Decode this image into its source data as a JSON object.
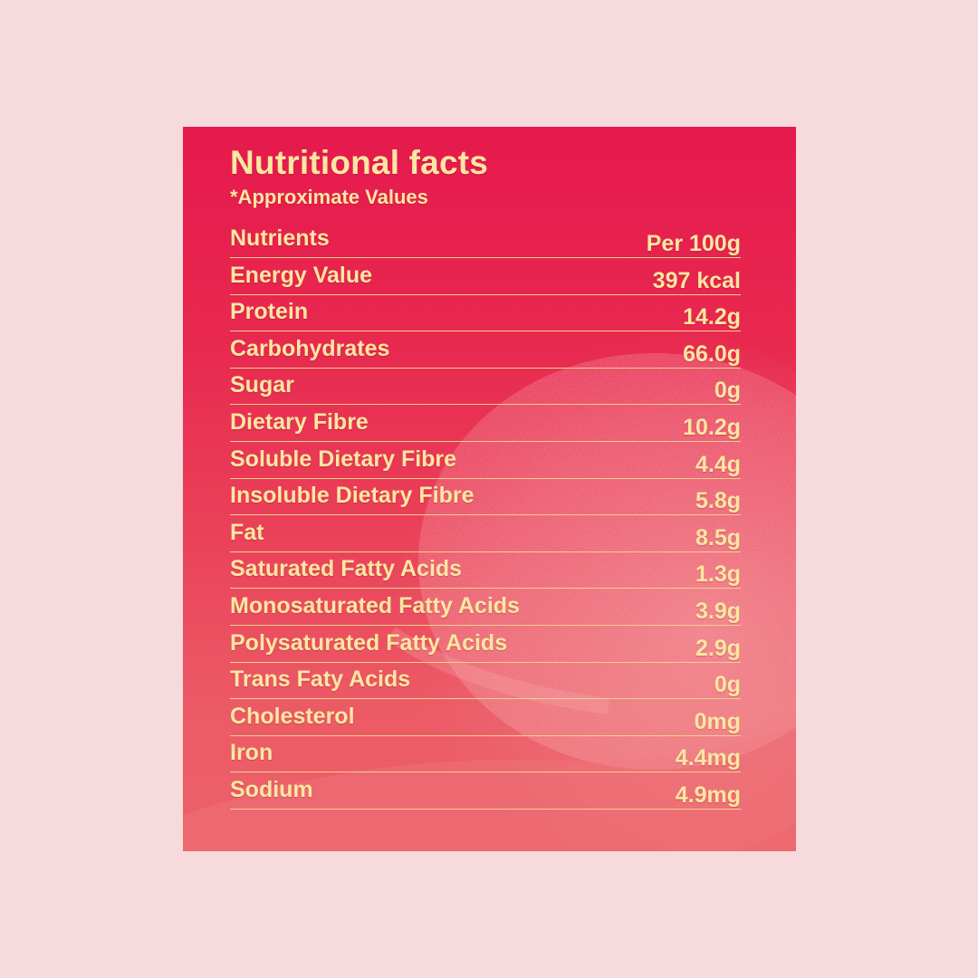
{
  "panel": {
    "title": "Nutritional facts",
    "subtitle": "*Approximate Values"
  },
  "table": {
    "header": {
      "nutrient": "Nutrients",
      "value": "Per 100g"
    },
    "rows": [
      {
        "nutrient": "Energy Value",
        "value": "397 kcal"
      },
      {
        "nutrient": "Protein",
        "value": "14.2g"
      },
      {
        "nutrient": "Carbohydrates",
        "value": "66.0g"
      },
      {
        "nutrient": "Sugar",
        "value": "0g"
      },
      {
        "nutrient": "Dietary Fibre",
        "value": "10.2g"
      },
      {
        "nutrient": "Soluble Dietary Fibre",
        "value": "4.4g"
      },
      {
        "nutrient": "Insoluble Dietary Fibre",
        "value": "5.8g"
      },
      {
        "nutrient": "Fat",
        "value": "8.5g"
      },
      {
        "nutrient": "Saturated Fatty Acids",
        "value": "1.3g"
      },
      {
        "nutrient": "Monosaturated Fatty Acids",
        "value": "3.9g"
      },
      {
        "nutrient": "Polysaturated Fatty Acids",
        "value": "2.9g"
      },
      {
        "nutrient": "Trans Faty Acids",
        "value": "0g"
      },
      {
        "nutrient": "Cholesterol",
        "value": "0mg"
      },
      {
        "nutrient": "Iron",
        "value": "4.4mg"
      },
      {
        "nutrient": "Sodium",
        "value": "4.9mg"
      }
    ]
  },
  "colors": {
    "page_background": "#f7dbdc",
    "panel_top": "#e5194d",
    "panel_bottom": "#ec6169",
    "text": "#fbe7a1",
    "rule": "#f4cf8a"
  }
}
